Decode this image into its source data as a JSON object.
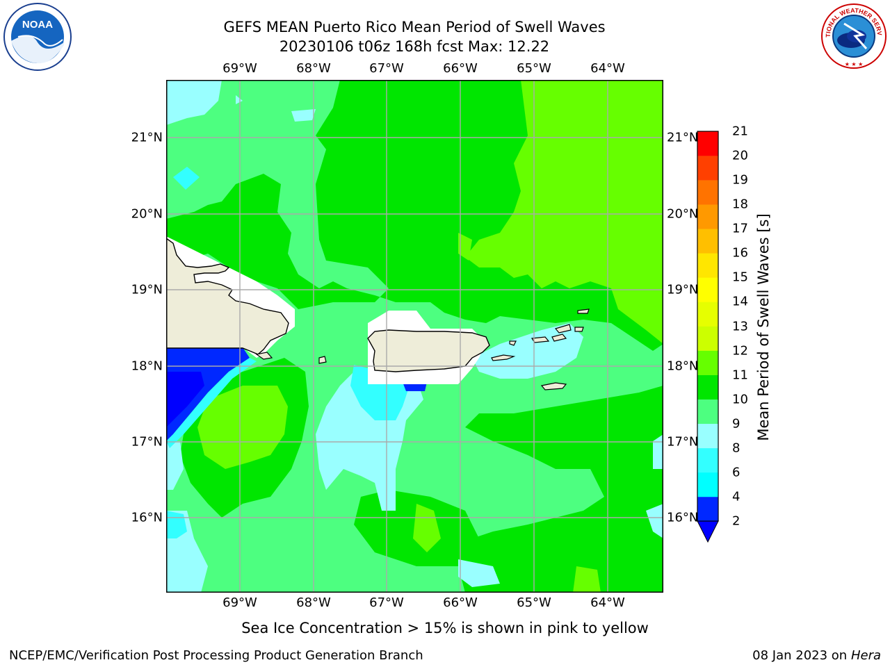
{
  "title_line1": "GEFS MEAN Puerto Rico Mean Period of Swell Waves",
  "title_line2": "20230106 t06z 168h fcst   Max: 12.22",
  "lon_labels": [
    "69°W",
    "68°W",
    "67°W",
    "66°W",
    "65°W",
    "64°W"
  ],
  "lat_labels": [
    "21°N",
    "20°N",
    "19°N",
    "18°N",
    "17°N",
    "16°N"
  ],
  "colorbar": {
    "label": "Mean Period of Swell Waves [s]",
    "ticks": [
      "2",
      "4",
      "6",
      "8",
      "9",
      "10",
      "11",
      "12",
      "13",
      "14",
      "15",
      "16",
      "17",
      "18",
      "19",
      "20",
      "21"
    ],
    "colors": [
      "#0028ff",
      "#00ffff",
      "#33ffff",
      "#99ffff",
      "#4dff80",
      "#00e600",
      "#66ff00",
      "#ccff00",
      "#e6ff00",
      "#ffff00",
      "#ffe600",
      "#ffbf00",
      "#ff9900",
      "#ff7300",
      "#ff4000",
      "#ff0000"
    ],
    "under_color": "#0000ff"
  },
  "map_colors": {
    "ocean_base": "#4dff80",
    "green": "#00e600",
    "lime": "#66ff00",
    "light_cyan": "#99ffff",
    "cyan": "#33ffff",
    "blue": "#0028ff",
    "deep_blue": "#0000ff",
    "land": "#eeedd9",
    "grid": "#aaaaaa"
  },
  "noaa_logo_text": "NOAA",
  "nws_logo_text": "NATIONAL WEATHER SERVICE",
  "footer_note": "Sea Ice Concentration > 15% is shown in pink to yellow",
  "footer_left": "NCEP/EMC/Verification Post Processing Product Generation Branch",
  "footer_right_date": "08 Jan 2023 on",
  "footer_right_host": "Hera"
}
